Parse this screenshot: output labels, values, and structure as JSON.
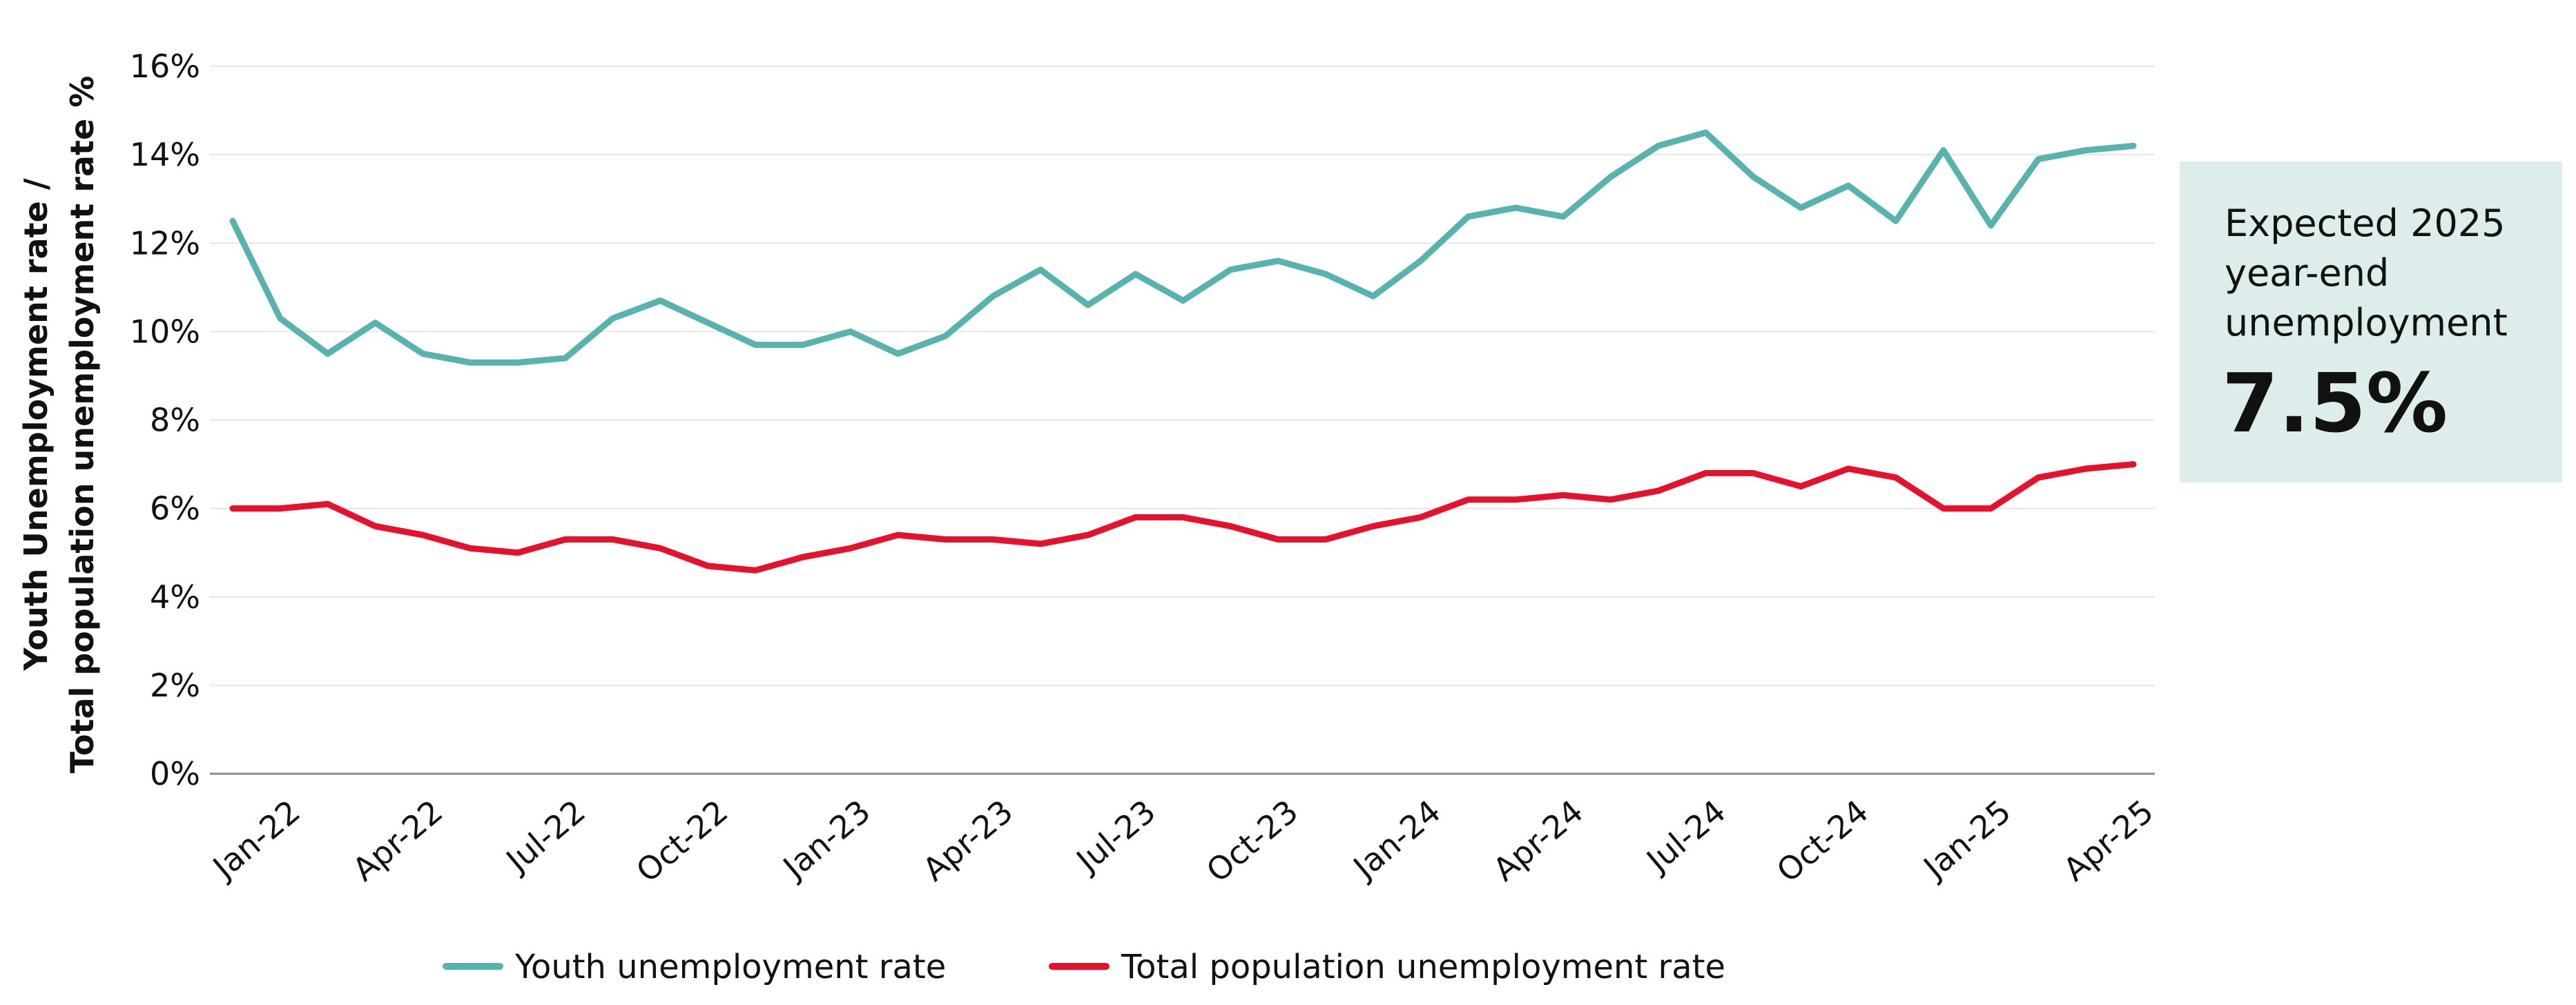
{
  "chart_data": {
    "type": "line",
    "ylabel": [
      "Youth Unemployment rate /",
      "Total population unemployment rate %"
    ],
    "categories": [
      null,
      "Jan-22",
      null,
      null,
      "Apr-22",
      null,
      null,
      "Jul-22",
      null,
      null,
      "Oct-22",
      null,
      null,
      "Jan-23",
      null,
      null,
      "Apr-23",
      null,
      null,
      "Jul-23",
      null,
      null,
      "Oct-23",
      null,
      null,
      "Jan-24",
      null,
      null,
      "Apr-24",
      null,
      null,
      "Jul-24",
      null,
      null,
      "Oct-24",
      null,
      null,
      "Jan-25",
      null,
      null,
      "Apr-25"
    ],
    "series": [
      {
        "name": "Youth unemployment rate",
        "color": "#56b3ad",
        "values": [
          12.5,
          10.3,
          9.5,
          10.2,
          9.5,
          9.3,
          9.3,
          9.4,
          10.3,
          10.7,
          10.2,
          9.7,
          9.7,
          10.0,
          9.5,
          9.9,
          10.8,
          11.4,
          10.6,
          11.3,
          10.7,
          11.4,
          11.6,
          11.3,
          10.8,
          11.6,
          12.6,
          12.8,
          12.6,
          13.5,
          14.2,
          14.5,
          13.5,
          12.8,
          13.3,
          12.5,
          14.1,
          12.4,
          13.9,
          14.1,
          14.2
        ]
      },
      {
        "name": "Total population unemployment rate",
        "color": "#e8112d",
        "values": [
          6.0,
          6.0,
          6.1,
          5.6,
          5.4,
          5.1,
          5.0,
          5.3,
          5.3,
          5.1,
          4.7,
          4.6,
          4.9,
          5.1,
          5.4,
          5.3,
          5.3,
          5.2,
          5.4,
          5.8,
          5.8,
          5.6,
          5.3,
          5.3,
          5.6,
          5.8,
          6.2,
          6.2,
          6.3,
          6.2,
          6.4,
          6.8,
          6.8,
          6.5,
          6.9,
          6.7,
          6.0,
          6.0,
          6.7,
          6.9,
          7.0
        ]
      }
    ],
    "ylim": [
      0,
      16
    ],
    "yticks": [
      {
        "value": 0,
        "label": "0%"
      },
      {
        "value": 2,
        "label": "2%"
      },
      {
        "value": 4,
        "label": "4%"
      },
      {
        "value": 6,
        "label": "6%"
      },
      {
        "value": 8,
        "label": "8%"
      },
      {
        "value": 10,
        "label": "10%"
      },
      {
        "value": 12,
        "label": "12%"
      },
      {
        "value": 14,
        "label": "14%"
      },
      {
        "value": 16,
        "label": "16%"
      }
    ],
    "grid": true,
    "legend": "bottom",
    "annotation": {
      "lines": [
        "Expected 2025",
        "year-end",
        "unemployment"
      ],
      "value": "7.5%"
    }
  }
}
